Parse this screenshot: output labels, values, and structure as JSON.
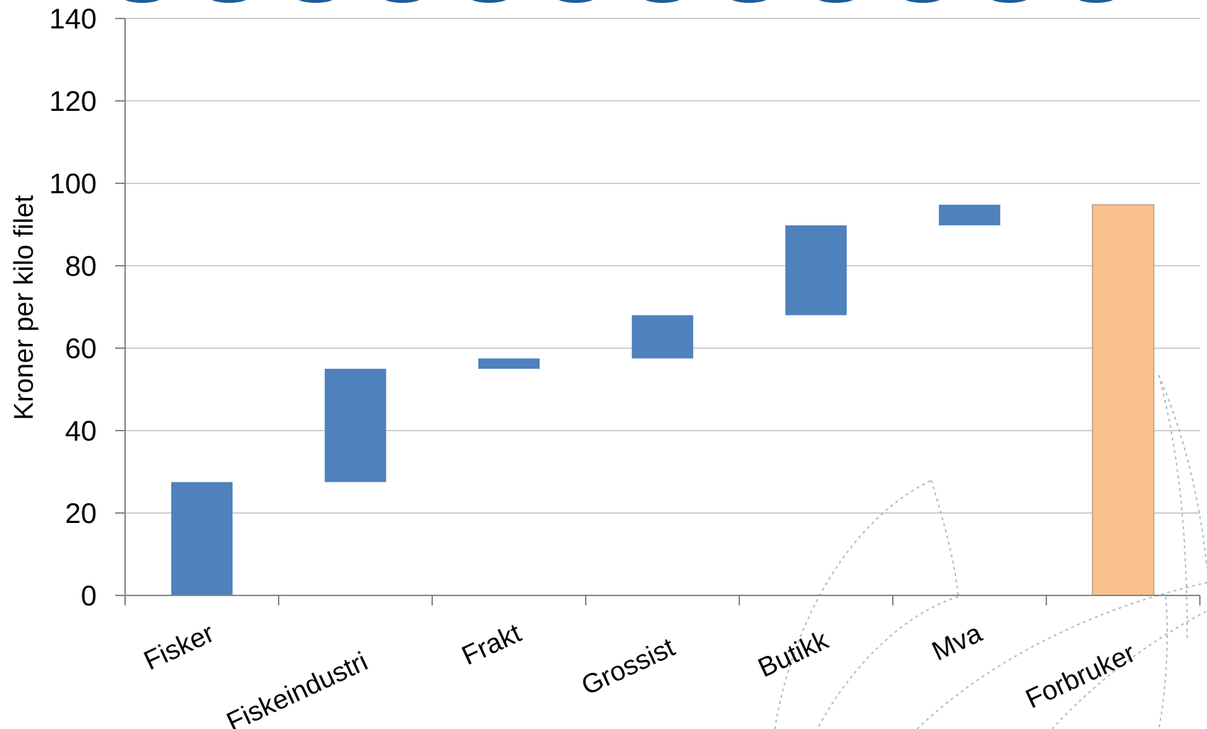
{
  "chart_data": {
    "type": "bar",
    "subtype": "waterfall",
    "title": "",
    "xlabel": "",
    "ylabel": "Kroner per kilo filet",
    "ylim": [
      0,
      140
    ],
    "yticks": [
      0,
      20,
      40,
      60,
      80,
      100,
      120,
      140
    ],
    "grid": true,
    "legend": "none",
    "categories": [
      "Fisker",
      "Fiskeindustri",
      "Frakt",
      "Grossist",
      "Butikk",
      "Mva",
      "Forbruker"
    ],
    "bars": [
      {
        "category": "Fisker",
        "bottom": 0,
        "top": 27.5,
        "kind": "increment"
      },
      {
        "category": "Fiskeindustri",
        "bottom": 27.5,
        "top": 55,
        "kind": "increment"
      },
      {
        "category": "Frakt",
        "bottom": 55,
        "top": 57.5,
        "kind": "increment"
      },
      {
        "category": "Grossist",
        "bottom": 57.5,
        "top": 68,
        "kind": "increment"
      },
      {
        "category": "Butikk",
        "bottom": 68,
        "top": 89.8,
        "kind": "increment"
      },
      {
        "category": "Mva",
        "bottom": 89.8,
        "top": 94.8,
        "kind": "increment"
      },
      {
        "category": "Forbruker",
        "bottom": 0,
        "top": 94.8,
        "kind": "total"
      }
    ],
    "colors": {
      "increment": "#4f81bd",
      "total": "#f9c090",
      "total_border": "#c0a080",
      "header_band": "#1f5c99"
    }
  }
}
